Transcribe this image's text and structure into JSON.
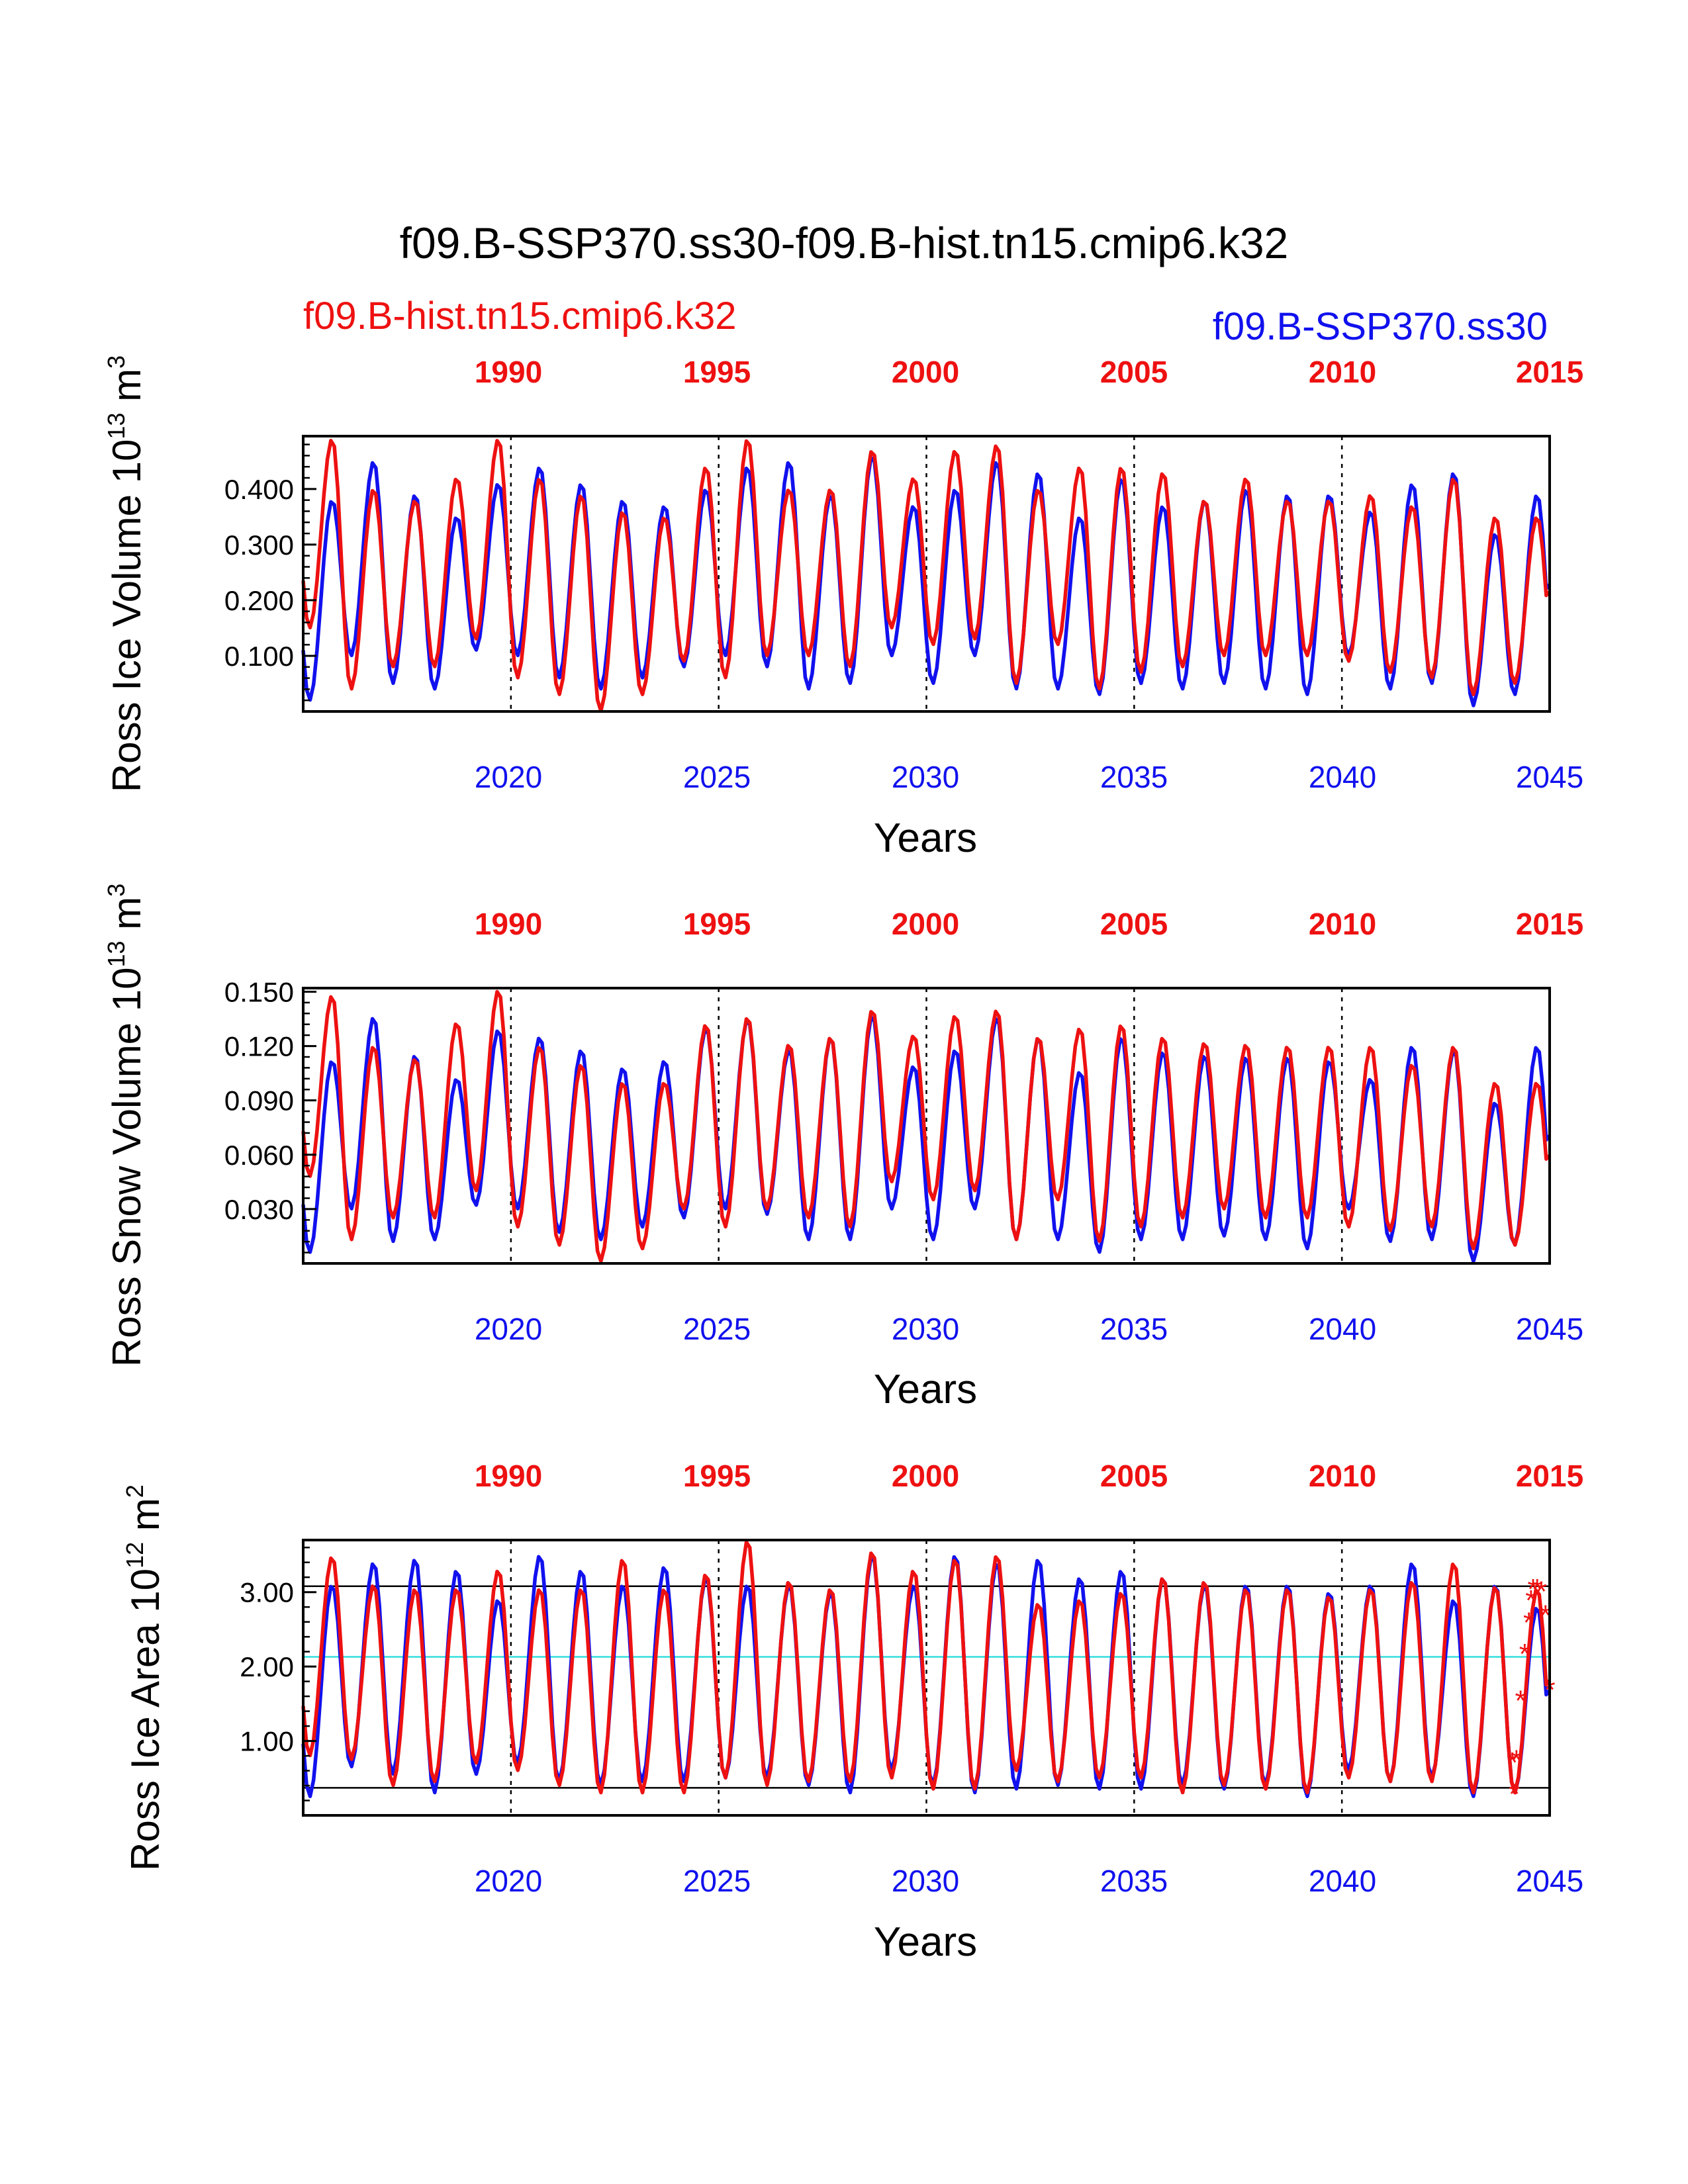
{
  "title": "f09.B-SSP370.ss30-f09.B-hist.tn15.cmip6.k32",
  "legend": {
    "red_case": "f09.B-hist.tn15.cmip6.k32",
    "blue_case": "f09.B-SSP370.ss30"
  },
  "colors": {
    "red": "#ee1111",
    "blue": "#1111ee",
    "cyan": "#33dddd",
    "black": "#000000"
  },
  "top_axis_years": [
    "1990",
    "1995",
    "2000",
    "2005",
    "2010",
    "2015"
  ],
  "bottom_axis_years": [
    "2020",
    "2025",
    "2030",
    "2035",
    "2040",
    "2045"
  ],
  "chart_data": [
    {
      "type": "line",
      "id": "volume",
      "ylabel": "Ross Ice Volume 10",
      "ylabel_exp": "13",
      "ylabel_unit": "m",
      "ylabel_unit_exp": "3",
      "xlabel": "Years",
      "xlim": [
        2015,
        2045
      ],
      "ylim": [
        0.0,
        0.495
      ],
      "yticks": [
        0.1,
        0.2,
        0.3,
        0.4
      ],
      "ytick_labels": [
        "0.100",
        "0.200",
        "0.300",
        "0.400"
      ],
      "series": [
        {
          "name": "f09.B-SSP370.ss30",
          "color": "#1111ee",
          "max": [
            0.38,
            0.45,
            0.39,
            0.35,
            0.41,
            0.44,
            0.41,
            0.38,
            0.37,
            0.4,
            0.44,
            0.45,
            0.39,
            0.46,
            0.37,
            0.4,
            0.45,
            0.43,
            0.35,
            0.42,
            0.37,
            0.38,
            0.4,
            0.39,
            0.39,
            0.36,
            0.41,
            0.43,
            0.32,
            0.39
          ],
          "min": [
            0.02,
            0.1,
            0.05,
            0.04,
            0.11,
            0.1,
            0.06,
            0.04,
            0.06,
            0.08,
            0.1,
            0.08,
            0.04,
            0.05,
            0.1,
            0.05,
            0.1,
            0.04,
            0.04,
            0.03,
            0.05,
            0.04,
            0.05,
            0.04,
            0.03,
            0.1,
            0.04,
            0.05,
            0.01,
            0.03
          ]
        },
        {
          "name": "f09.B-hist.tn15.cmip6.k32",
          "color": "#ee1111",
          "max": [
            0.49,
            0.4,
            0.38,
            0.42,
            0.49,
            0.42,
            0.39,
            0.36,
            0.35,
            0.44,
            0.49,
            0.4,
            0.4,
            0.47,
            0.42,
            0.47,
            0.48,
            0.4,
            0.44,
            0.44,
            0.43,
            0.38,
            0.42,
            0.38,
            0.38,
            0.39,
            0.37,
            0.42,
            0.35,
            0.35
          ],
          "min": [
            0.15,
            0.04,
            0.08,
            0.08,
            0.13,
            0.06,
            0.03,
            0.0,
            0.03,
            0.09,
            0.06,
            0.1,
            0.1,
            0.08,
            0.15,
            0.12,
            0.13,
            0.05,
            0.12,
            0.04,
            0.07,
            0.08,
            0.1,
            0.1,
            0.1,
            0.09,
            0.07,
            0.06,
            0.03,
            0.05
          ]
        }
      ]
    },
    {
      "type": "line",
      "id": "snow",
      "ylabel": "Ross Snow Volume 10",
      "ylabel_exp": "13",
      "ylabel_unit": "m",
      "ylabel_unit_exp": "3",
      "xlabel": "Years",
      "xlim": [
        2015,
        2045
      ],
      "ylim": [
        0.0,
        0.152
      ],
      "yticks": [
        0.03,
        0.06,
        0.09,
        0.12,
        0.15
      ],
      "ytick_labels": [
        "0.030",
        "0.060",
        "0.090",
        "0.120",
        "0.150"
      ],
      "series": [
        {
          "name": "f09.B-SSP370.ss30",
          "color": "#1111ee",
          "max": [
            0.112,
            0.136,
            0.115,
            0.102,
            0.129,
            0.125,
            0.118,
            0.108,
            0.112,
            0.13,
            0.135,
            0.118,
            0.125,
            0.137,
            0.109,
            0.118,
            0.136,
            0.125,
            0.106,
            0.125,
            0.117,
            0.115,
            0.114,
            0.114,
            0.112,
            0.102,
            0.12,
            0.118,
            0.089,
            0.12
          ],
          "min": [
            0.006,
            0.03,
            0.012,
            0.013,
            0.032,
            0.03,
            0.017,
            0.013,
            0.02,
            0.025,
            0.03,
            0.027,
            0.013,
            0.013,
            0.03,
            0.013,
            0.03,
            0.013,
            0.013,
            0.006,
            0.013,
            0.013,
            0.015,
            0.013,
            0.008,
            0.03,
            0.012,
            0.013,
            0.001,
            0.01
          ]
        },
        {
          "name": "f09.B-hist.tn15.cmip6.k32",
          "color": "#ee1111",
          "max": [
            0.148,
            0.12,
            0.113,
            0.133,
            0.151,
            0.12,
            0.11,
            0.1,
            0.1,
            0.132,
            0.136,
            0.121,
            0.125,
            0.14,
            0.126,
            0.137,
            0.14,
            0.125,
            0.13,
            0.132,
            0.125,
            0.122,
            0.121,
            0.12,
            0.12,
            0.12,
            0.11,
            0.12,
            0.1,
            0.1
          ],
          "min": [
            0.048,
            0.013,
            0.025,
            0.025,
            0.04,
            0.02,
            0.01,
            0.001,
            0.008,
            0.03,
            0.02,
            0.03,
            0.025,
            0.02,
            0.045,
            0.035,
            0.04,
            0.013,
            0.035,
            0.012,
            0.02,
            0.025,
            0.03,
            0.025,
            0.025,
            0.02,
            0.018,
            0.02,
            0.008,
            0.01
          ]
        }
      ]
    },
    {
      "type": "line",
      "id": "area",
      "ylabel": "Ross Ice Area 10",
      "ylabel_exp": "12",
      "ylabel_unit": "m",
      "ylabel_unit_exp": "2",
      "xlabel": "Years",
      "xlim": [
        2015,
        2045
      ],
      "ylim": [
        0.0,
        3.7
      ],
      "yticks": [
        1.0,
        2.0,
        3.0
      ],
      "ytick_labels": [
        "1.00",
        "2.00",
        "3.00"
      ],
      "reference_lines": [
        {
          "value": 3.08,
          "color": "#000000"
        },
        {
          "value": 2.13,
          "color": "#33dddd"
        },
        {
          "value": 0.37,
          "color": "#000000"
        }
      ],
      "marker_points": {
        "color": "#ee1111",
        "symbol": "*",
        "x": [
          2044.1,
          2044.15,
          2044.2,
          2044.3,
          2044.4,
          2044.5,
          2044.55,
          2044.6,
          2044.7,
          2044.8,
          2044.9,
          2045.0
        ],
        "y": [
          0.72,
          0.3,
          0.75,
          1.55,
          2.18,
          2.6,
          2.9,
          3.05,
          3.05,
          3.02,
          2.7,
          1.7
        ]
      },
      "series": [
        {
          "name": "f09.B-SSP370.ss30",
          "color": "#1111ee",
          "max": [
            3.1,
            3.4,
            3.45,
            3.3,
            2.9,
            3.5,
            3.3,
            3.1,
            3.35,
            3.2,
            3.1,
            3.1,
            3.0,
            3.5,
            3.1,
            3.5,
            3.4,
            3.45,
            3.2,
            3.3,
            3.2,
            3.1,
            3.1,
            3.1,
            3.0,
            3.1,
            3.4,
            2.9,
            3.1,
            2.8
          ],
          "min": [
            0.25,
            0.65,
            0.55,
            0.3,
            0.55,
            0.7,
            0.45,
            0.4,
            0.45,
            0.45,
            0.5,
            0.5,
            0.4,
            0.3,
            0.6,
            0.4,
            0.3,
            0.35,
            0.4,
            0.35,
            0.35,
            0.4,
            0.35,
            0.4,
            0.25,
            0.6,
            0.45,
            0.5,
            0.25,
            0.3
          ]
        },
        {
          "name": "f09.B-hist.tn15.cmip6.k32",
          "color": "#ee1111",
          "max": [
            3.48,
            3.1,
            3.05,
            3.05,
            3.3,
            3.05,
            3.05,
            3.45,
            3.05,
            3.25,
            3.7,
            3.15,
            3.05,
            3.55,
            3.3,
            3.45,
            3.5,
            2.85,
            2.9,
            3.0,
            3.2,
            3.15,
            3.05,
            3.05,
            2.95,
            3.05,
            3.15,
            3.4,
            3.08,
            3.05
          ],
          "min": [
            0.8,
            0.75,
            0.4,
            0.45,
            0.7,
            0.6,
            0.4,
            0.3,
            0.3,
            0.3,
            0.5,
            0.4,
            0.45,
            0.45,
            0.5,
            0.35,
            0.35,
            0.6,
            0.45,
            0.5,
            0.5,
            0.3,
            0.4,
            0.35,
            0.3,
            0.5,
            0.45,
            0.45,
            0.3,
            0.3
          ]
        }
      ]
    }
  ]
}
